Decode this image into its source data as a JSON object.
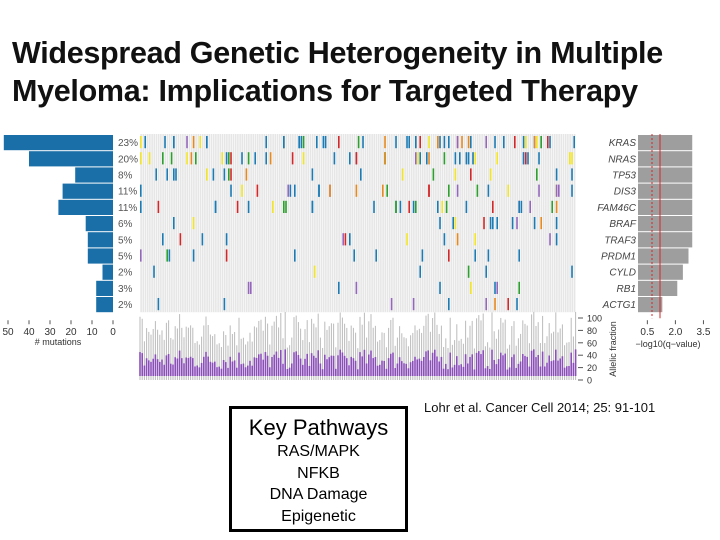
{
  "title_lines": [
    "Widespread Genetic Heterogeneity in Multiple",
    "Myeloma: Implications for Targeted Therapy"
  ],
  "figure": {
    "genes": [
      {
        "name": "KRAS",
        "frequency": "23%",
        "mutations": 52,
        "q_score": 2.9
      },
      {
        "name": "NRAS",
        "frequency": "20%",
        "mutations": 40,
        "q_score": 2.9
      },
      {
        "name": "TP53",
        "frequency": "8%",
        "mutations": 18,
        "q_score": 2.9
      },
      {
        "name": "DIS3",
        "frequency": "11%",
        "mutations": 24,
        "q_score": 2.9
      },
      {
        "name": "FAM46C",
        "frequency": "11%",
        "mutations": 26,
        "q_score": 2.9
      },
      {
        "name": "BRAF",
        "frequency": "6%",
        "mutations": 13,
        "q_score": 2.9
      },
      {
        "name": "TRAF3",
        "frequency": "5%",
        "mutations": 12,
        "q_score": 2.9
      },
      {
        "name": "PRDM1",
        "frequency": "5%",
        "mutations": 12,
        "q_score": 2.7
      },
      {
        "name": "CYLD",
        "frequency": "2%",
        "mutations": 5,
        "q_score": 2.4
      },
      {
        "name": "RB1",
        "frequency": "3%",
        "mutations": 8,
        "q_score": 2.1
      },
      {
        "name": "ACTG1",
        "frequency": "2%",
        "mutations": 8,
        "q_score": 1.3
      }
    ],
    "mutation_axis": {
      "label": "# mutations",
      "ticks": [
        50,
        40,
        30,
        20,
        10,
        0
      ]
    },
    "q_axis": {
      "label": "−log10(q−value)",
      "ticks": [
        {
          "value": 0.5,
          "label": "0.5"
        },
        {
          "value": 2,
          "label": "2.0"
        },
        {
          "value": 3.5,
          "label": "3.5"
        }
      ]
    },
    "af_axis": {
      "label": "Allelic fraction",
      "ticks": [
        100,
        80,
        60,
        40,
        20,
        0
      ]
    }
  },
  "key_pathways": {
    "title": "Key Pathways",
    "items": [
      "RAS/MAPK",
      "NFKB",
      "DNA Damage",
      "Epigenetic"
    ]
  },
  "citation": "Lohr et al. Cancer Cell 2014; 25: 91-101"
}
